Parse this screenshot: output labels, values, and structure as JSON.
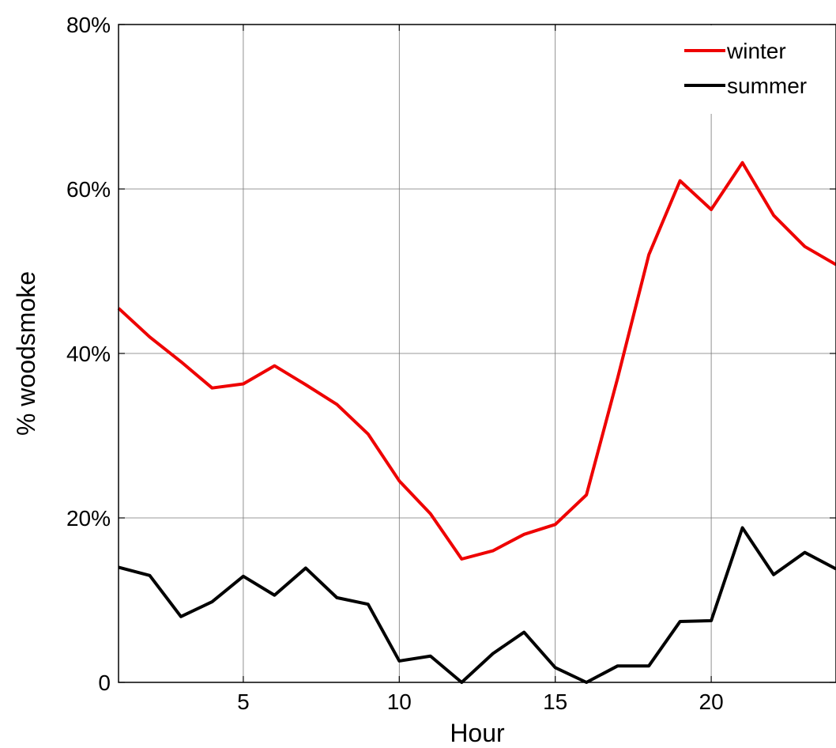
{
  "chart_data": {
    "type": "line",
    "xlabel": "Hour",
    "ylabel": "% woodsmoke",
    "xlim": [
      1,
      24
    ],
    "ylim": [
      0,
      80
    ],
    "x_ticks": [
      5,
      10,
      15,
      20
    ],
    "x_tick_labels": [
      "5",
      "10",
      "15",
      "20"
    ],
    "y_ticks": [
      0,
      20,
      40,
      60,
      80
    ],
    "y_tick_labels": [
      "0",
      "20%",
      "40%",
      "60%",
      "80%"
    ],
    "grid": true,
    "legend_position": "top-right",
    "x": [
      1,
      2,
      3,
      4,
      5,
      6,
      7,
      8,
      9,
      10,
      11,
      12,
      13,
      14,
      15,
      16,
      17,
      18,
      19,
      20,
      21,
      22,
      23,
      24
    ],
    "series": [
      {
        "name": "winter",
        "color": "#ee0000",
        "values": [
          45.5,
          42,
          39,
          35.8,
          36.3,
          38.5,
          36.2,
          33.8,
          30.2,
          24.5,
          20.5,
          15,
          16,
          18,
          19.2,
          22.8,
          37,
          52,
          61,
          57.5,
          63.2,
          56.8,
          53,
          50.8
        ]
      },
      {
        "name": "summer",
        "color": "#000000",
        "values": [
          14,
          13,
          8,
          9.8,
          12.9,
          10.6,
          13.9,
          10.3,
          9.5,
          2.6,
          3.2,
          0,
          3.5,
          6.1,
          1.8,
          0,
          2,
          2,
          7.4,
          7.5,
          18.8,
          13.1,
          15.8,
          13.8
        ]
      }
    ]
  }
}
